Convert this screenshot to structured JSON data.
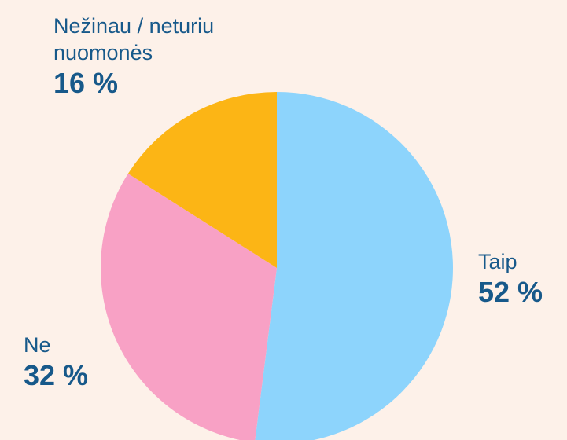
{
  "chart_data": {
    "type": "pie",
    "categories": [
      "Taip",
      "Ne",
      "Nežinau / neturiu nuomonės"
    ],
    "values": [
      52,
      32,
      16
    ],
    "value_labels": [
      "52 %",
      "32 %",
      "16 %"
    ],
    "colors": [
      "#8dd4fc",
      "#f8a1c5",
      "#fcb515"
    ]
  }
}
